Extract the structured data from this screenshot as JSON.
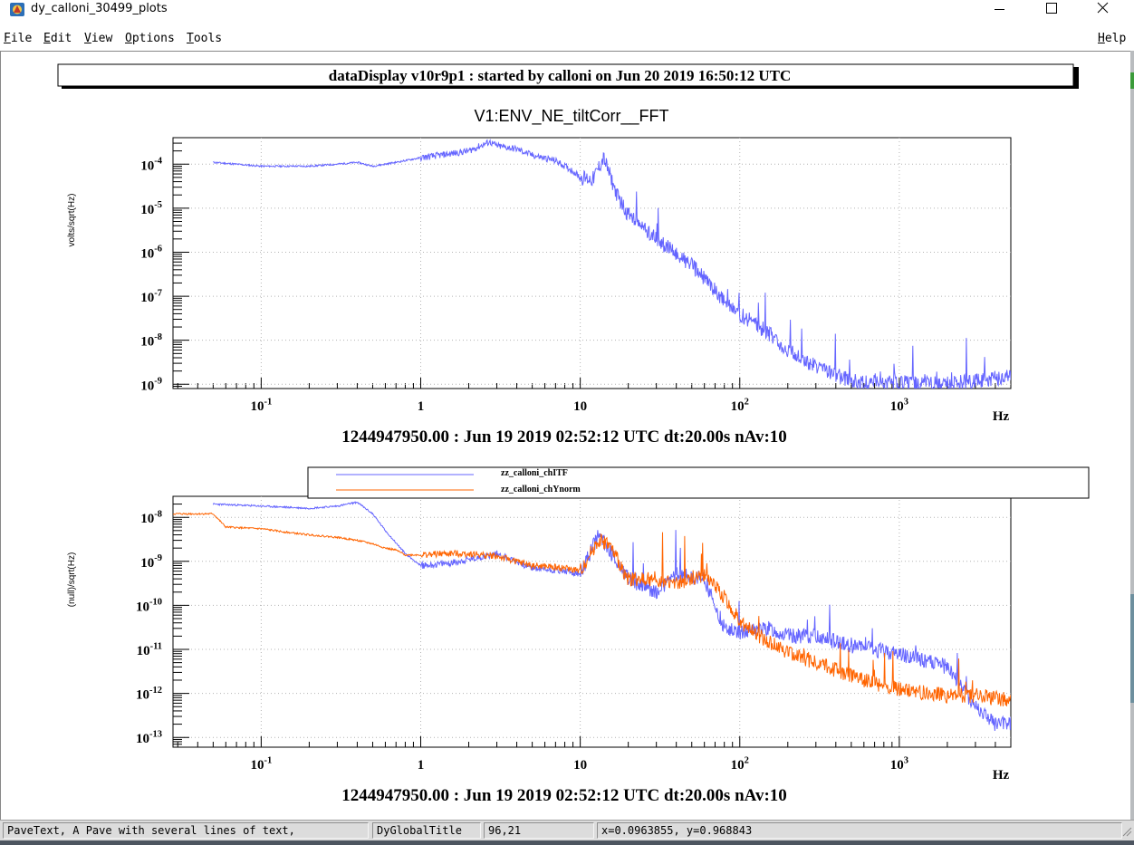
{
  "window": {
    "title": "dy_calloni_30499_plots",
    "controls": {
      "minimize": "–",
      "maximize": "□",
      "close": "✕"
    },
    "app_icon": "root-app-icon"
  },
  "menu": {
    "file": "File",
    "edit": "Edit",
    "view": "View",
    "options": "Options",
    "tools": "Tools",
    "help": "Help"
  },
  "header": {
    "global_title": "dataDisplay v10r9p1 : started by calloni on Jun 20 2019 16:50:12 UTC"
  },
  "colors": {
    "blue": "#6464ff",
    "orange": "#ff6400",
    "grid": "#b4b4b4"
  },
  "chart_data": [
    {
      "type": "line",
      "title": "V1:ENV_NE_tiltCorr__FFT",
      "ylabel": "volts/sqrt(Hz)",
      "xlabel": "Hz",
      "subtitle": "1244947950.00 : Jun 19 2019 02:52:12 UTC dt:20.00s nAv:10",
      "x_scale": "log",
      "y_scale": "log",
      "xlim": [
        0.028,
        5000
      ],
      "ylim": [
        8e-10,
        0.0004
      ],
      "x_ticks": [
        "10^-1",
        "1",
        "10",
        "10^2",
        "10^3"
      ],
      "y_ticks": [
        "10^-9",
        "10^-8",
        "10^-7",
        "10^-6",
        "10^-5",
        "10^-4"
      ],
      "grid": true,
      "series": [
        {
          "color": "#6464ff",
          "x": [
            0.05,
            0.1,
            0.2,
            0.3,
            0.4,
            0.5,
            0.7,
            1,
            1.5,
            2,
            2.7,
            3,
            4,
            5,
            7,
            9,
            10,
            12,
            14,
            17,
            20,
            30,
            40,
            50,
            60,
            80,
            100,
            150,
            200,
            300,
            500,
            700,
            1000,
            2000,
            5000
          ],
          "y": [
            0.00011,
            9e-05,
            9e-05,
            0.0001,
            0.00011,
            9e-05,
            0.00011,
            0.00014,
            0.00017,
            0.0002,
            0.00032,
            0.00026,
            0.00022,
            0.00016,
            0.00012,
            7e-05,
            5e-05,
            4.5e-05,
            0.00014,
            2e-05,
            7e-06,
            2e-06,
            9e-07,
            5e-07,
            2.5e-07,
            8e-08,
            4e-08,
            1.5e-08,
            6e-09,
            2.5e-09,
            1.2e-09,
            1e-09,
            1.1e-09,
            1e-09,
            1.5e-09
          ]
        }
      ]
    },
    {
      "type": "line",
      "ylabel": "(null)/sqrt(Hz)",
      "xlabel": "Hz",
      "subtitle": "1244947950.00 : Jun 19 2019 02:52:12 UTC dt:20.00s nAv:10",
      "x_scale": "log",
      "y_scale": "log",
      "xlim": [
        0.028,
        5000
      ],
      "ylim": [
        6e-14,
        3e-08
      ],
      "x_ticks": [
        "10^-1",
        "1",
        "10",
        "10^2",
        "10^3"
      ],
      "y_ticks": [
        "10^-13",
        "10^-12",
        "10^-11",
        "10^-10",
        "10^-9",
        "10^-8"
      ],
      "grid": true,
      "legend": {
        "placement": "top",
        "entries": [
          "zz_calloni_chITF",
          "zz_calloni_chYnorm"
        ]
      },
      "series": [
        {
          "name": "zz_calloni_chITF",
          "color": "#6464ff",
          "x": [
            0.05,
            0.1,
            0.2,
            0.3,
            0.4,
            0.5,
            0.6,
            0.8,
            1,
            1.5,
            2,
            3,
            5,
            8,
            10,
            13,
            15,
            20,
            30,
            40,
            60,
            80,
            100,
            150,
            200,
            300,
            500,
            1000,
            2000,
            3000,
            4000,
            5000
          ],
          "y": [
            2e-08,
            1.8e-08,
            1.6e-08,
            1.8e-08,
            2.2e-08,
            1.2e-08,
            5e-09,
            1.5e-09,
            8e-10,
            9e-10,
            1.1e-09,
            1.5e-09,
            7e-10,
            6e-10,
            5e-10,
            4e-09,
            2e-09,
            4e-10,
            2e-10,
            5e-10,
            4e-10,
            3e-11,
            2.5e-11,
            3e-11,
            2e-11,
            2e-11,
            1.2e-11,
            8e-12,
            4e-12,
            5e-13,
            2e-13,
            2e-13
          ]
        },
        {
          "name": "zz_calloni_chYnorm",
          "color": "#ff6400",
          "x": [
            0.028,
            0.05,
            0.06,
            0.1,
            0.15,
            0.2,
            0.3,
            0.4,
            0.5,
            0.6,
            0.7,
            0.8,
            1,
            1.5,
            2,
            3,
            5,
            8,
            10,
            13,
            15,
            20,
            30,
            40,
            60,
            80,
            100,
            150,
            200,
            300,
            500,
            1000,
            2000,
            3000,
            5000
          ],
          "y": [
            1.2e-08,
            1.2e-08,
            6e-09,
            5.5e-09,
            4.5e-09,
            4e-09,
            3.5e-09,
            3e-09,
            2.5e-09,
            2e-09,
            1.8e-09,
            1.4e-09,
            1.4e-09,
            1.5e-09,
            1.5e-09,
            1.3e-09,
            8e-10,
            7e-10,
            6e-10,
            3e-09,
            2.5e-09,
            4e-10,
            4e-10,
            3e-10,
            5e-10,
            1.5e-10,
            4e-11,
            1.5e-11,
            9e-12,
            5e-12,
            2.5e-12,
            1.2e-12,
            9e-13,
            9e-13,
            7e-13
          ]
        }
      ]
    }
  ],
  "status": {
    "object_info": "PaveText, A Pave with several lines of text,",
    "object_name": "DyGlobalTitle",
    "pixel": "96,21",
    "coords": "x=0.0963855, y=0.968843"
  }
}
